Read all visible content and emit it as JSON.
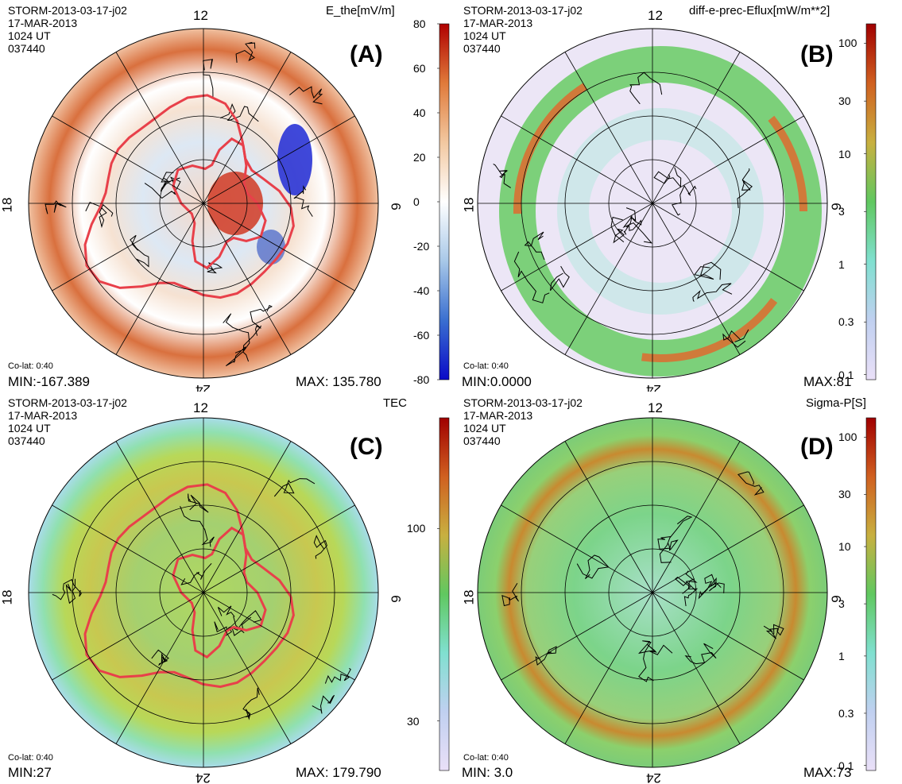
{
  "figure": {
    "panels": [
      {
        "id": "A",
        "header": [
          "STORM-2013-03-17-j02",
          "17-MAR-2013",
          "1024 UT",
          "037440"
        ],
        "quantity": "E_the[mV/m]",
        "panel_label": "(A)",
        "mlt_labels": {
          "top": "12",
          "left": "18",
          "right": "6",
          "bottom": "24"
        },
        "colat_text": "Co-lat: 0:40",
        "min_text": "MIN:-167.389",
        "max_text": "MAX: 135.780",
        "colorbar": {
          "scale": "linear",
          "ticks": [
            "80",
            "60",
            "40",
            "20",
            "0",
            "-20",
            "-40",
            "-60",
            "-80"
          ],
          "colors": [
            "#b00000",
            "#e07a3a",
            "#f2c8a0",
            "#ffffff",
            "#a8c8e8",
            "#3a6fd0",
            "#0a0ac8"
          ]
        },
        "has_red_contour": true
      },
      {
        "id": "B",
        "header": [
          "STORM-2013-03-17-j02",
          "17-MAR-2013",
          "1024 UT",
          "037440"
        ],
        "quantity": "diff-e-prec-Eflux[mW/m**2]",
        "panel_label": "(B)",
        "mlt_labels": {
          "top": "12",
          "left": "18",
          "right": "6",
          "bottom": "24"
        },
        "colat_text": "Co-lat: 0:40",
        "min_text": "MIN:0.0000",
        "max_text": "MAX:81",
        "colorbar": {
          "scale": "log",
          "ticks": [
            "100",
            "30",
            "10",
            "3",
            "1",
            "0.3",
            "0.1"
          ],
          "colors": [
            "#a00000",
            "#d06020",
            "#c8b040",
            "#60c860",
            "#80e0d0",
            "#c0d0f0",
            "#eae0f8"
          ]
        },
        "has_red_contour": false
      },
      {
        "id": "C",
        "header": [
          "STORM-2013-03-17-j02",
          "17-MAR-2013",
          "1024 UT",
          "037440"
        ],
        "quantity": "TEC",
        "panel_label": "(C)",
        "mlt_labels": {
          "top": "12",
          "left": "18",
          "right": "6",
          "bottom": "24"
        },
        "colat_text": "Co-lat: 0:40",
        "min_text": "MIN:27",
        "max_text": "MAX: 179.790",
        "colorbar": {
          "scale": "log",
          "ticks": [
            "100",
            "30"
          ],
          "colors": [
            "#a00000",
            "#d06020",
            "#c8b040",
            "#60c860",
            "#80e0d0",
            "#c0d0f0",
            "#eae0f8"
          ]
        },
        "has_red_contour": true
      },
      {
        "id": "D",
        "header": [
          "STORM-2013-03-17-j02",
          "17-MAR-2013",
          "1024 UT",
          "037440"
        ],
        "quantity": "Sigma-P[S]",
        "panel_label": "(D)",
        "mlt_labels": {
          "top": "12",
          "left": "18",
          "right": "6",
          "bottom": "24"
        },
        "colat_text": "Co-lat: 0:40",
        "min_text": "MIN: 3.0",
        "max_text": "MAX:73",
        "colorbar": {
          "scale": "log",
          "ticks": [
            "100",
            "30",
            "10",
            "3",
            "1",
            "0.3",
            "0.1"
          ],
          "colors": [
            "#a00000",
            "#d06020",
            "#c8b040",
            "#60c860",
            "#80e0d0",
            "#c0d0f0",
            "#eae0f8"
          ]
        },
        "has_red_contour": false
      }
    ]
  },
  "chart_data": [
    {
      "type": "heatmap",
      "projection": "polar (magnetic local time / co-latitude)",
      "title": "E_the[mV/m]",
      "colorbar_range": [
        -80,
        80
      ],
      "colorbar_ticks": [
        80,
        60,
        40,
        20,
        0,
        -20,
        -40,
        -60,
        -80
      ],
      "min": -167.389,
      "max": 135.78,
      "colat_max_deg": 40,
      "mlt_labels": [
        "12",
        "18",
        "6",
        "24"
      ]
    },
    {
      "type": "heatmap",
      "projection": "polar (magnetic local time / co-latitude)",
      "title": "diff-e-prec-Eflux[mW/m**2]",
      "colorbar_scale": "log",
      "colorbar_ticks": [
        100,
        30,
        10,
        3,
        1,
        0.3,
        0.1
      ],
      "min": 0.0,
      "max": 81,
      "colat_max_deg": 40,
      "mlt_labels": [
        "12",
        "18",
        "6",
        "24"
      ]
    },
    {
      "type": "heatmap",
      "projection": "polar (magnetic local time / co-latitude)",
      "title": "TEC",
      "colorbar_scale": "log",
      "colorbar_ticks": [
        100,
        30
      ],
      "min": 27,
      "max": 179.79,
      "colat_max_deg": 40,
      "mlt_labels": [
        "12",
        "18",
        "6",
        "24"
      ]
    },
    {
      "type": "heatmap",
      "projection": "polar (magnetic local time / co-latitude)",
      "title": "Sigma-P[S]",
      "colorbar_scale": "log",
      "colorbar_ticks": [
        100,
        30,
        10,
        3,
        1,
        0.3,
        0.1
      ],
      "min": 3.0,
      "max": 73,
      "colat_max_deg": 40,
      "mlt_labels": [
        "12",
        "18",
        "6",
        "24"
      ]
    }
  ]
}
